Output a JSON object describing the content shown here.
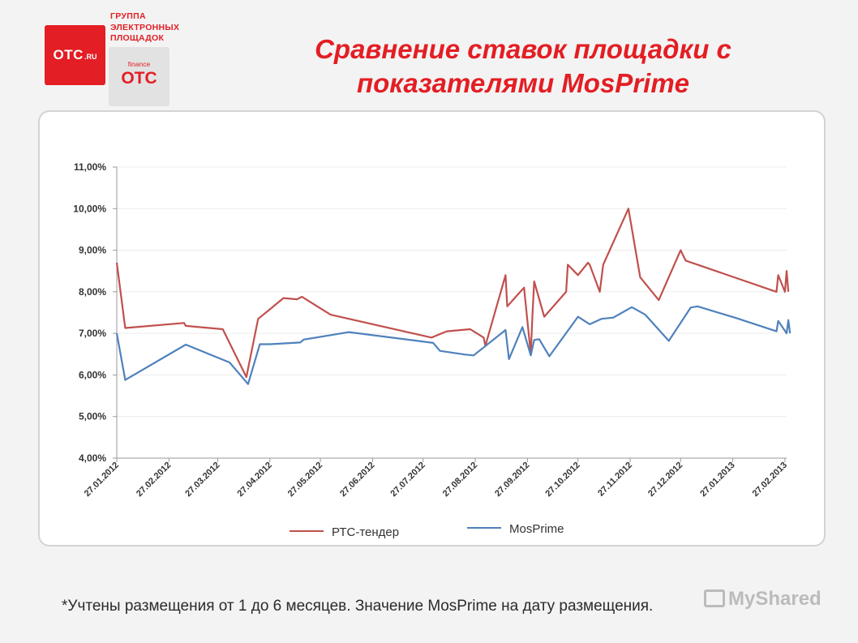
{
  "header": {
    "logo_main": "OTC",
    "logo_suffix": ".RU",
    "group_title": "ГРУППА ЭЛЕКТРОННЫХ ПЛОЩАДОК",
    "finance_small": "finance",
    "finance_big": "OTC",
    "title": "Сравнение ставок площадки с показателями MosPrime"
  },
  "footnote": "*Учтены размещения от 1 до 6 месяцев. Значение MosPrime на дату размещения.",
  "watermark": "MyShared",
  "colors": {
    "brand_red": "#e31e24",
    "series_rts": "#c0504d",
    "series_mosprime": "#4f81bd"
  },
  "chart_data": {
    "type": "line",
    "title": "",
    "xlabel": "",
    "ylabel": "",
    "ylim": [
      4,
      11
    ],
    "yticks": [
      "4,00%",
      "5,00%",
      "6,00%",
      "7,00%",
      "8,00%",
      "9,00%",
      "10,00%",
      "11,00%"
    ],
    "xlim": [
      "2012-01-27",
      "2013-02-28"
    ],
    "xticks": [
      "27.01.2012",
      "27.02.2012",
      "27.03.2012",
      "27.04.2012",
      "27.05.2012",
      "27.06.2012",
      "27.07.2012",
      "27.08.2012",
      "27.09.2012",
      "27.10.2012",
      "27.11.2012",
      "27.12.2012",
      "27.01.2013",
      "27.02.2013"
    ],
    "grid": true,
    "legend_position": "bottom",
    "series": [
      {
        "name": "РТС-тендер",
        "points": [
          [
            "2012-01-27",
            8.7
          ],
          [
            "2012-02-01",
            7.13
          ],
          [
            "2012-03-07",
            7.25
          ],
          [
            "2012-03-08",
            7.18
          ],
          [
            "2012-03-30",
            7.1
          ],
          [
            "2012-04-13",
            5.95
          ],
          [
            "2012-04-20",
            7.35
          ],
          [
            "2012-04-27",
            7.58
          ],
          [
            "2012-05-05",
            7.85
          ],
          [
            "2012-05-13",
            7.82
          ],
          [
            "2012-05-16",
            7.88
          ],
          [
            "2012-06-02",
            7.45
          ],
          [
            "2012-08-01",
            6.9
          ],
          [
            "2012-08-10",
            7.05
          ],
          [
            "2012-08-24",
            7.1
          ],
          [
            "2012-09-01",
            6.9
          ],
          [
            "2012-09-02",
            6.7
          ],
          [
            "2012-09-14",
            8.4
          ],
          [
            "2012-09-15",
            7.65
          ],
          [
            "2012-09-25",
            8.1
          ],
          [
            "2012-09-29",
            6.5
          ],
          [
            "2012-09-30",
            7.45
          ],
          [
            "2012-10-01",
            8.25
          ],
          [
            "2012-10-07",
            7.4
          ],
          [
            "2012-10-20",
            8.0
          ],
          [
            "2012-10-21",
            8.65
          ],
          [
            "2012-10-27",
            8.4
          ],
          [
            "2012-11-02",
            8.7
          ],
          [
            "2012-11-03",
            8.65
          ],
          [
            "2012-11-09",
            8.0
          ],
          [
            "2012-11-11",
            8.65
          ],
          [
            "2012-11-26",
            10.0
          ],
          [
            "2012-12-03",
            8.35
          ],
          [
            "2012-12-14",
            7.8
          ],
          [
            "2012-12-27",
            9.0
          ],
          [
            "2012-12-30",
            8.75
          ],
          [
            "2013-02-22",
            8.0
          ],
          [
            "2013-02-23",
            8.4
          ],
          [
            "2013-02-27",
            8.0
          ],
          [
            "2013-02-28",
            8.5
          ],
          [
            "2013-03-01",
            8.0
          ]
        ]
      },
      {
        "name": "MosPrime",
        "points": [
          [
            "2012-01-27",
            7.0
          ],
          [
            "2012-02-01",
            5.88
          ],
          [
            "2012-03-08",
            6.73
          ],
          [
            "2012-04-03",
            6.3
          ],
          [
            "2012-04-14",
            5.78
          ],
          [
            "2012-04-21",
            6.74
          ],
          [
            "2012-04-27",
            6.74
          ],
          [
            "2012-05-15",
            6.78
          ],
          [
            "2012-05-17",
            6.85
          ],
          [
            "2012-06-13",
            7.03
          ],
          [
            "2012-08-02",
            6.77
          ],
          [
            "2012-08-06",
            6.58
          ],
          [
            "2012-08-21",
            6.49
          ],
          [
            "2012-08-26",
            6.47
          ],
          [
            "2012-09-14",
            7.08
          ],
          [
            "2012-09-16",
            6.38
          ],
          [
            "2012-09-24",
            7.15
          ],
          [
            "2012-09-29",
            6.47
          ],
          [
            "2012-10-01",
            6.84
          ],
          [
            "2012-10-04",
            6.86
          ],
          [
            "2012-10-10",
            6.45
          ],
          [
            "2012-10-27",
            7.4
          ],
          [
            "2012-11-03",
            7.22
          ],
          [
            "2012-11-10",
            7.35
          ],
          [
            "2012-11-17",
            7.38
          ],
          [
            "2012-11-28",
            7.63
          ],
          [
            "2012-12-06",
            7.45
          ],
          [
            "2012-12-20",
            6.82
          ],
          [
            "2013-01-02",
            7.62
          ],
          [
            "2013-01-06",
            7.65
          ],
          [
            "2013-01-29",
            7.37
          ],
          [
            "2013-02-22",
            7.05
          ],
          [
            "2013-02-23",
            7.3
          ],
          [
            "2013-02-28",
            7.0
          ],
          [
            "2013-03-01",
            7.32
          ],
          [
            "2013-03-02",
            7.0
          ]
        ]
      }
    ]
  }
}
